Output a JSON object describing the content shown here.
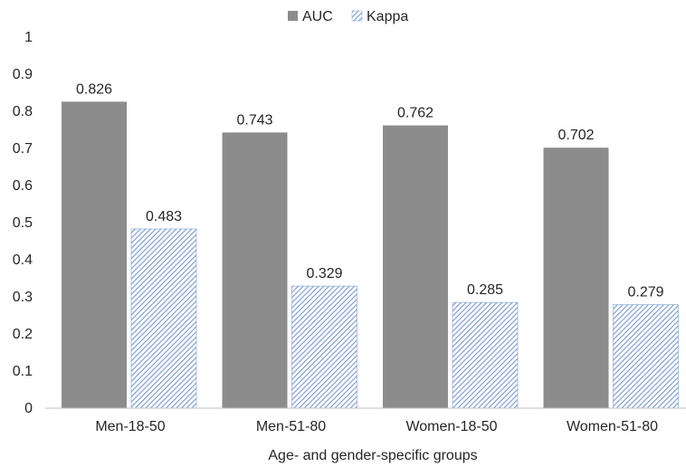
{
  "chart_data": {
    "type": "bar",
    "title": "",
    "xlabel": "Age- and gender-specific groups",
    "ylabel": "",
    "ylim": [
      0,
      1
    ],
    "yticks": [
      "0",
      "0.1",
      "0.2",
      "0.3",
      "0.4",
      "0.5",
      "0.6",
      "0.7",
      "0.8",
      "0.9",
      "1"
    ],
    "categories": [
      "Men-18-50",
      "Men-51-80",
      "Women-18-50",
      "Women-51-80"
    ],
    "series": [
      {
        "name": "AUC",
        "values": [
          0.826,
          0.743,
          0.762,
          0.702
        ],
        "labels": [
          "0.826",
          "0.743",
          "0.762",
          "0.702"
        ],
        "color": "#8c8c8c",
        "pattern": "solid"
      },
      {
        "name": "Kappa",
        "values": [
          0.483,
          0.329,
          0.285,
          0.279
        ],
        "labels": [
          "0.483",
          "0.329",
          "0.285",
          "0.279"
        ],
        "color": "#7f9fd3",
        "pattern": "diagonal-hatch"
      }
    ],
    "grid": false,
    "legend": "top-center"
  }
}
